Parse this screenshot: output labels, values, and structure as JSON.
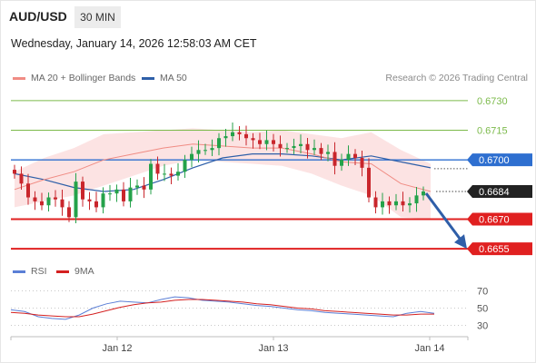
{
  "header": {
    "symbol": "AUD/USD",
    "timeframe": "30 MIN",
    "datetime": "Wednesday, January 14, 2026 12:58:03 AM CET"
  },
  "legend": {
    "ma_bollinger": {
      "label": "MA 20 + Bollinger Bands",
      "color": "#f08c84"
    },
    "ma50": {
      "label": "MA 50",
      "color": "#2e5fa8"
    },
    "credit": "Research © 2026 Trading Central"
  },
  "rsi_legend": {
    "rsi": {
      "label": "RSI",
      "color": "#5b7fd6"
    },
    "ma9": {
      "label": "9MA",
      "color": "#d42020"
    }
  },
  "chart_data": {
    "type": "line",
    "series": [
      {
        "name": "AUD/USD",
        "values": [
          0.6693,
          0.6688,
          0.6681,
          0.6679,
          0.6677,
          0.6681,
          0.668,
          0.6676,
          0.6671,
          0.6689,
          0.668,
          0.6679,
          0.6676,
          0.6683,
          0.6683,
          0.6685,
          0.6679,
          0.6686,
          0.6687,
          0.6685,
          0.6698,
          0.6693,
          0.6693,
          0.6692,
          0.6694,
          0.67,
          0.6703,
          0.6705,
          0.6705,
          0.6706,
          0.6711,
          0.6712,
          0.6714,
          0.6713,
          0.6711,
          0.671,
          0.6708,
          0.671,
          0.6708,
          0.6706,
          0.6706,
          0.6707,
          0.6708,
          0.6705,
          0.6706,
          0.6703,
          0.6704,
          0.6697,
          0.67,
          0.6703,
          0.6701,
          0.6696,
          0.6681,
          0.6676,
          0.6679,
          0.6677,
          0.6679,
          0.6677,
          0.6678,
          0.6682,
          0.6684
        ]
      },
      {
        "name": "MA 20",
        "values": [
          0.6685,
          0.669,
          0.6694,
          0.67,
          0.6703,
          0.6706,
          0.6708,
          0.6707,
          0.6706,
          0.6706,
          0.6703,
          0.6699,
          0.6698,
          0.6688,
          0.6684
        ]
      },
      {
        "name": "MA 50",
        "values": [
          0.6693,
          0.669,
          0.6686,
          0.6684,
          0.6685,
          0.669,
          0.6696,
          0.6701,
          0.6703,
          0.6703,
          0.6702,
          0.67,
          0.6702,
          0.6699,
          0.6696
        ]
      }
    ],
    "levels": [
      {
        "value": 0.673,
        "label": "0.6730",
        "kind": "resistance"
      },
      {
        "value": 0.6715,
        "label": "0.6715",
        "kind": "resistance"
      },
      {
        "value": 0.67,
        "label": "0.6700",
        "kind": "pivot"
      },
      {
        "value": 0.6684,
        "label": "0.6684",
        "kind": "last"
      },
      {
        "value": 0.667,
        "label": "0.6670",
        "kind": "support"
      },
      {
        "value": 0.6655,
        "label": "0.6655",
        "kind": "support"
      }
    ],
    "forecast_target": 0.6655,
    "ylim": [
      0.665,
      0.6735
    ],
    "x_ticks": [
      "Jan 12",
      "Jan 13",
      "Jan 14"
    ],
    "rsi": {
      "ticks": [
        "70",
        "50",
        "30"
      ],
      "ylim": [
        20,
        80
      ],
      "values": [
        48,
        46,
        40,
        38,
        37,
        42,
        50,
        55,
        58,
        57,
        56,
        60,
        63,
        62,
        59,
        58,
        57,
        55,
        53,
        52,
        50,
        48,
        47,
        45,
        44,
        43,
        42,
        41,
        40,
        44,
        46,
        44
      ],
      "ma9": [
        45,
        44,
        42,
        41,
        40,
        40,
        43,
        47,
        51,
        54,
        56,
        57,
        59,
        60,
        60,
        59,
        58,
        57,
        55,
        54,
        52,
        50,
        49,
        47,
        46,
        45,
        44,
        43,
        42,
        42,
        43,
        43
      ]
    },
    "grid": false
  },
  "colors": {
    "resistance": "#7cba4b",
    "pivot": "#2e6fd0",
    "support": "#e02020",
    "last": "#222222",
    "bull": "#24a24a",
    "bear": "#c9262c",
    "band": "#fbdada"
  }
}
